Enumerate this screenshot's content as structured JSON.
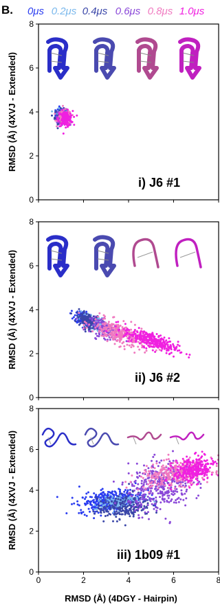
{
  "figure": {
    "panel_letter": "B.",
    "legend": [
      {
        "label": "0μs",
        "color": "#2b3df0"
      },
      {
        "label": "0.2μs",
        "color": "#7ab8ec"
      },
      {
        "label": "0.4μs",
        "color": "#3a46a8"
      },
      {
        "label": "0.6μs",
        "color": "#8a48d8"
      },
      {
        "label": "0.8μs",
        "color": "#f07ac0"
      },
      {
        "label": "1.0μs",
        "color": "#f020e0"
      }
    ],
    "shared_xlabel": "RMSD (Å) (4DGY - Hairpin)",
    "structure_colors": [
      "#2a2ec8",
      "#4a4ab0",
      "#b04a90",
      "#c020c0"
    ]
  },
  "chart_data": [
    {
      "type": "scatter",
      "panel_label": "i) J6 #1",
      "ylabel": "RMSD (Å) (4XVJ - Extended)",
      "xlim": [
        0,
        8
      ],
      "ylim": [
        0,
        8
      ],
      "xticks": [
        "0",
        "2",
        "4",
        "6",
        "8"
      ],
      "yticks": [
        "0",
        "2",
        "4",
        "6",
        "8"
      ],
      "show_xtick_labels": false,
      "clusters": [
        {
          "time": "0μs",
          "color": "#2b3df0",
          "cx": 1.0,
          "cy": 3.9,
          "sx": 0.12,
          "sy": 0.14,
          "n": 90
        },
        {
          "time": "0.2μs",
          "color": "#7ab8ec",
          "cx": 1.05,
          "cy": 3.85,
          "sx": 0.13,
          "sy": 0.15,
          "n": 90
        },
        {
          "time": "0.4μs",
          "color": "#3a46a8",
          "cx": 1.0,
          "cy": 3.8,
          "sx": 0.14,
          "sy": 0.16,
          "n": 90
        },
        {
          "time": "0.6μs",
          "color": "#8a48d8",
          "cx": 1.1,
          "cy": 3.8,
          "sx": 0.14,
          "sy": 0.15,
          "n": 90
        },
        {
          "time": "0.8μs",
          "color": "#f07ac0",
          "cx": 1.15,
          "cy": 3.75,
          "sx": 0.15,
          "sy": 0.16,
          "n": 110
        },
        {
          "time": "1.0μs",
          "color": "#f020e0",
          "cx": 1.2,
          "cy": 3.7,
          "sx": 0.16,
          "sy": 0.17,
          "n": 140
        }
      ]
    },
    {
      "type": "scatter",
      "panel_label": "ii) J6 #2",
      "ylabel": "RMSD (Å) (4XVJ - Extended)",
      "xlim": [
        0,
        8
      ],
      "ylim": [
        0,
        8
      ],
      "xticks": [
        "0",
        "2",
        "4",
        "6",
        "8"
      ],
      "yticks": [
        "0",
        "2",
        "4",
        "6",
        "8"
      ],
      "show_xtick_labels": false,
      "clusters": [
        {
          "time": "0μs",
          "color": "#2b3df0",
          "cx": 2.0,
          "cy": 3.6,
          "sx": 0.2,
          "sy": 0.15,
          "n": 160
        },
        {
          "time": "0.2μs",
          "color": "#7ab8ec",
          "cx": 2.4,
          "cy": 3.4,
          "sx": 0.3,
          "sy": 0.18,
          "n": 120
        },
        {
          "time": "0.4μs",
          "color": "#3a46a8",
          "cx": 2.2,
          "cy": 3.5,
          "sx": 0.25,
          "sy": 0.17,
          "n": 140
        },
        {
          "time": "0.6μs",
          "color": "#8a48d8",
          "cx": 3.0,
          "cy": 3.1,
          "sx": 0.35,
          "sy": 0.2,
          "n": 140
        },
        {
          "time": "0.8μs",
          "color": "#f07ac0",
          "cx": 3.6,
          "cy": 2.9,
          "sx": 0.6,
          "sy": 0.25,
          "n": 280
        },
        {
          "time": "1.0μs",
          "color": "#f020e0",
          "cx": 5.0,
          "cy": 2.6,
          "sx": 0.6,
          "sy": 0.18,
          "n": 320
        }
      ]
    },
    {
      "type": "scatter",
      "panel_label": "iii) 1b09 #1",
      "ylabel": "RMSD (Å) (4XVJ - Extended)",
      "xlabel": "RMSD (Å) (4DGY - Hairpin)",
      "xlim": [
        0,
        8
      ],
      "ylim": [
        0,
        8
      ],
      "xticks": [
        "0",
        "2",
        "4",
        "6",
        "8"
      ],
      "yticks": [
        "0",
        "2",
        "4",
        "6",
        "8"
      ],
      "show_xtick_labels": true,
      "clusters": [
        {
          "time": "0μs",
          "color": "#2b3df0",
          "cx": 3.2,
          "cy": 3.5,
          "sx": 0.7,
          "sy": 0.25,
          "n": 360
        },
        {
          "time": "0.2μs",
          "color": "#7ab8ec",
          "cx": 3.5,
          "cy": 3.4,
          "sx": 0.5,
          "sy": 0.2,
          "n": 120
        },
        {
          "time": "0.4μs",
          "color": "#3a46a8",
          "cx": 3.8,
          "cy": 3.2,
          "sx": 0.6,
          "sy": 0.3,
          "n": 220
        },
        {
          "time": "0.6μs",
          "color": "#8a48d8",
          "cx": 5.4,
          "cy": 4.2,
          "sx": 0.7,
          "sy": 0.6,
          "n": 360
        },
        {
          "time": "0.8μs",
          "color": "#f07ac0",
          "cx": 6.1,
          "cy": 4.8,
          "sx": 0.8,
          "sy": 0.3,
          "n": 320
        },
        {
          "time": "1.0μs",
          "color": "#f020e0",
          "cx": 6.9,
          "cy": 5.0,
          "sx": 0.45,
          "sy": 0.3,
          "n": 300
        }
      ]
    }
  ]
}
